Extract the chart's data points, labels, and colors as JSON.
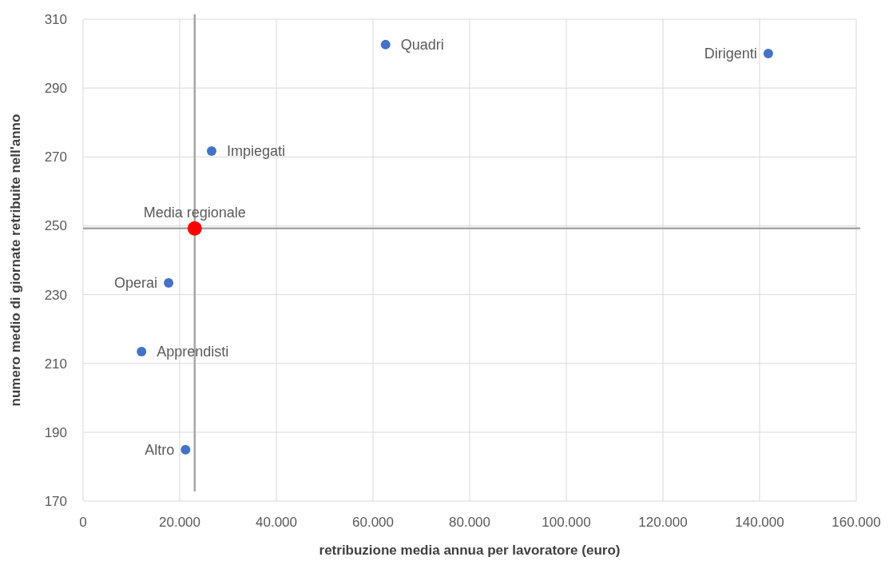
{
  "chart_data": {
    "type": "scatter",
    "xlabel": "retribuzione media annua per lavoratore (euro)",
    "ylabel": "numero  medio di giornate retribuite nell'anno",
    "xlim": [
      0,
      160000
    ],
    "ylim": [
      170,
      310
    ],
    "xticks": [
      0,
      {
        "value": 20000,
        "label": "20.000"
      },
      {
        "value": 40000,
        "label": "40.000"
      },
      {
        "value": 60000,
        "label": "60.000"
      },
      {
        "value": 80000,
        "label": "80.000"
      },
      {
        "value": 100000,
        "label": "100.000"
      },
      {
        "value": 120000,
        "label": "120.000"
      },
      {
        "value": 140000,
        "label": "140.000"
      },
      {
        "value": 160000,
        "label": "160.000"
      }
    ],
    "yticks": [
      170,
      190,
      210,
      230,
      250,
      270,
      290,
      310
    ],
    "grid": true,
    "marker": "circle",
    "series": [
      {
        "color": "#4472c4",
        "x": [
          62600,
          141800,
          26600,
          17700,
          12100,
          21200
        ],
        "values": [
          302.6,
          300.0,
          271.7,
          233.4,
          213.4,
          184.9
        ]
      },
      {
        "color": "#ff0000",
        "x": [
          23100
        ],
        "values": [
          249.2
        ]
      }
    ],
    "ref_lines": [
      {
        "axis": "x",
        "value": 23100,
        "color": "#a6a6a6"
      },
      {
        "axis": "y",
        "value": 249.2,
        "color": "#a6a6a6"
      }
    ],
    "annotations": [
      {
        "text": "Quadri",
        "x": 62600,
        "y": 302.6
      },
      {
        "text": "Dirigenti",
        "x": 141800,
        "y": 300.0
      },
      {
        "text": "Impiegati",
        "x": 26600,
        "y": 271.7
      },
      {
        "text": "Operai",
        "x": 17700,
        "y": 233.4
      },
      {
        "text": "Apprendisti",
        "x": 12100,
        "y": 213.4
      },
      {
        "text": "Altro",
        "x": 21200,
        "y": 184.9
      },
      {
        "text": "Media regionale",
        "x": 23100,
        "y": 249.2
      }
    ]
  }
}
